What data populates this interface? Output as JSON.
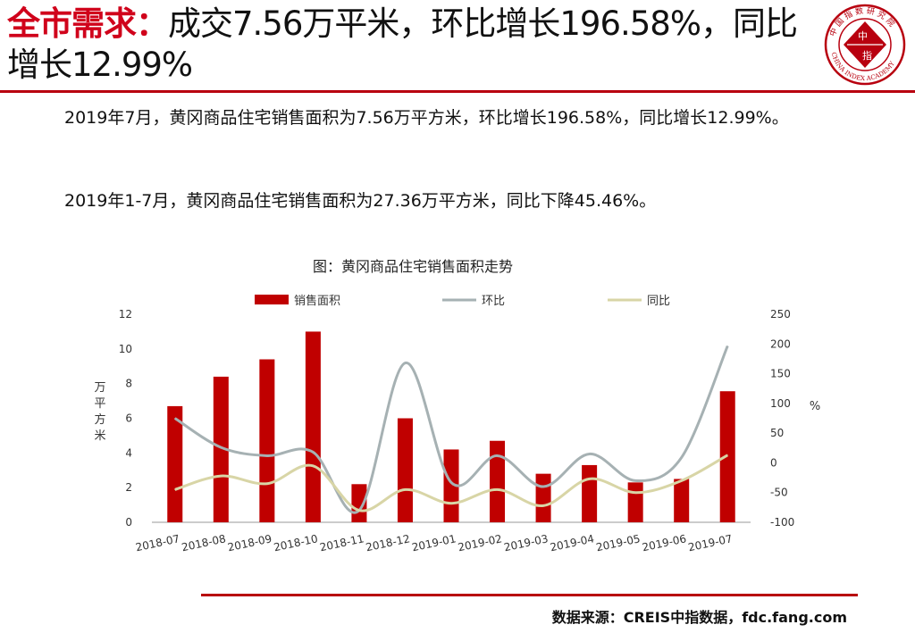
{
  "header": {
    "title_accent": "全市需求：",
    "title_rest": "成交7.56万平米，环比增长196.58%，同比增长12.99%",
    "logo_text_top": "中 国 指 数 研 究 院",
    "logo_text_center_1": "中",
    "logo_text_center_2": "指",
    "logo_text_bottom": "CHINA INDEX ACADEMY"
  },
  "body": {
    "paragraph_1": "2019年7月，黄冈商品住宅销售面积为7.56万平方米，环比增长196.58%，同比增长12.99%。",
    "paragraph_2": "2019年1-7月，黄冈商品住宅销售面积为27.36万平方米，同比下降45.46%。"
  },
  "footer": {
    "source": "数据来源：CREIS中指数据，fdc.fang.com"
  },
  "colors": {
    "accent": "#d0021b",
    "bar": "#c00000",
    "mom": "#a6b1b3",
    "yoy": "#d8d5a6"
  },
  "chart_data": {
    "type": "bar",
    "title": "图：黄冈商品住宅销售面积走势",
    "categories": [
      "2018-07",
      "2018-08",
      "2018-09",
      "2018-10",
      "2018-11",
      "2018-12",
      "2019-01",
      "2019-02",
      "2019-03",
      "2019-04",
      "2019-05",
      "2019-06",
      "2019-07"
    ],
    "series": [
      {
        "name": "销售面积",
        "type": "bar",
        "axis": "left",
        "values": [
          6.7,
          8.4,
          9.4,
          11.0,
          2.2,
          6.0,
          4.2,
          4.7,
          2.8,
          3.3,
          2.3,
          2.5,
          7.56
        ]
      },
      {
        "name": "环比",
        "type": "line",
        "axis": "right",
        "values": [
          75,
          26,
          12,
          18,
          -80,
          168,
          -33,
          12,
          -40,
          15,
          -30,
          9,
          196.58
        ]
      },
      {
        "name": "同比",
        "type": "line",
        "axis": "right",
        "values": [
          -45,
          -22,
          -35,
          -5,
          -80,
          -45,
          -68,
          -45,
          -72,
          -27,
          -50,
          -30,
          12.99
        ]
      }
    ],
    "ylabel_left": "万平方米",
    "ylabel_right": "%",
    "ylim_left": [
      0,
      12
    ],
    "yticks_left": [
      0,
      2,
      4,
      6,
      8,
      10,
      12
    ],
    "ylim_right": [
      -100,
      250
    ],
    "yticks_right": [
      -100,
      -50,
      0,
      50,
      100,
      150,
      200,
      250
    ],
    "legend_position": "top",
    "grid": false
  }
}
